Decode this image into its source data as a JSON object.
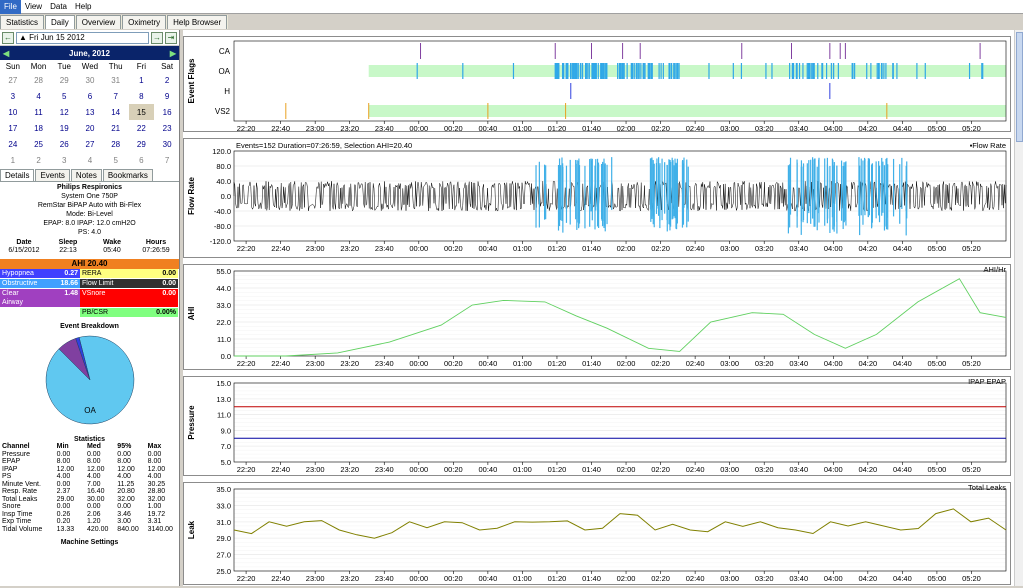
{
  "menu": [
    "File",
    "View",
    "Data",
    "Help"
  ],
  "tabs": [
    "Statistics",
    "Daily",
    "Overview",
    "Oximetry",
    "Help Browser"
  ],
  "date_box": "Fri Jun 15 2012",
  "cal_title": "June,  2012",
  "weekdays": [
    "Sun",
    "Mon",
    "Tue",
    "Wed",
    "Thu",
    "Fri",
    "Sat"
  ],
  "cal_rows": [
    [
      "27",
      "28",
      "29",
      "30",
      "31",
      "1",
      "2"
    ],
    [
      "3",
      "4",
      "5",
      "6",
      "7",
      "8",
      "9"
    ],
    [
      "10",
      "11",
      "12",
      "13",
      "14",
      "15",
      "16"
    ],
    [
      "17",
      "18",
      "19",
      "20",
      "21",
      "22",
      "23"
    ],
    [
      "24",
      "25",
      "26",
      "27",
      "28",
      "29",
      "30"
    ],
    [
      "1",
      "2",
      "3",
      "4",
      "5",
      "6",
      "7"
    ]
  ],
  "subtabs": [
    "Details",
    "Events",
    "Notes",
    "Bookmarks"
  ],
  "machine": {
    "brand": "Philips Respironics",
    "model": "System One 750P",
    "name": "RemStar BiPAP Auto with Bi-Flex",
    "mode": "Mode: Bi-Level",
    "pressure": "EPAP: 8.0 IPAP: 12.0 cmH2O",
    "ps": "PS: 4.0"
  },
  "dsw": {
    "h": [
      "Date",
      "Sleep",
      "Wake",
      "Hours"
    ],
    "v": [
      "6/15/2012",
      "22:13",
      "05:40",
      "07:26:59"
    ]
  },
  "ahi": "AHI 20.40",
  "idx": [
    {
      "l": "Hypopnea",
      "v": "0.27",
      "lc": "#4040ff",
      "vc": "#4040ff",
      "fg": "#fff"
    },
    {
      "l": "RERA",
      "v": "0.00",
      "lc": "#ffff80",
      "vc": "#ffff80",
      "fg": "#000"
    },
    {
      "l": "Obstructive",
      "v": "18.66",
      "lc": "#40a0ff",
      "vc": "#40a0ff",
      "fg": "#fff"
    },
    {
      "l": "Flow Limit",
      "v": "0.00",
      "lc": "#303030",
      "vc": "#303030",
      "fg": "#fff"
    },
    {
      "l": "Clear Airway",
      "v": "1.48",
      "lc": "#a040c0",
      "vc": "#a040c0",
      "fg": "#fff"
    },
    {
      "l": "VSnore",
      "v": "0.00",
      "lc": "#ff0000",
      "vc": "#ff0000",
      "fg": "#fff"
    },
    {
      "l": "",
      "v": "",
      "lc": "#fff",
      "vc": "#fff",
      "fg": "#000"
    },
    {
      "l": "PB/CSR",
      "v": "0.00%",
      "lc": "#80ff80",
      "vc": "#80ff80",
      "fg": "#000"
    }
  ],
  "event_breakdown": "Event Breakdown",
  "pie": {
    "label": "OA",
    "slices": [
      {
        "name": "OA",
        "value": 91.5,
        "color": "#60c8f0"
      },
      {
        "name": "CA",
        "value": 7.2,
        "color": "#8040a0"
      },
      {
        "name": "H",
        "value": 1.3,
        "color": "#3040e0"
      }
    ]
  },
  "statistics_title": "Statistics",
  "stat_header": [
    "Channel",
    "Min",
    "Med",
    "95%",
    "Max"
  ],
  "stats": [
    [
      "Pressure",
      "0.00",
      "0.00",
      "0.00",
      "0.00"
    ],
    [
      "EPAP",
      "8.00",
      "8.00",
      "8.00",
      "8.00"
    ],
    [
      "IPAP",
      "12.00",
      "12.00",
      "12.00",
      "12.00"
    ],
    [
      "PS",
      "4.00",
      "4.00",
      "4.00",
      "4.00"
    ],
    [
      "Minute Vent.",
      "0.00",
      "7.00",
      "11.25",
      "30.25"
    ],
    [
      "Resp. Rate",
      "2.37",
      "16.40",
      "20.80",
      "28.80"
    ],
    [
      "Total Leaks",
      "29.00",
      "30.00",
      "32.00",
      "32.00"
    ],
    [
      "Snore",
      "0.00",
      "0.00",
      "0.00",
      "1.00"
    ],
    [
      "Insp Time",
      "0.26",
      "2.06",
      "3.46",
      "19.72"
    ],
    [
      "Exp Time",
      "0.20",
      "1.20",
      "3.00",
      "3.31"
    ],
    [
      "Tidal Volume",
      "13.33",
      "420.00",
      "840.00",
      "3140.00"
    ]
  ],
  "machine_settings": "Machine Settings",
  "x_ticks": [
    "22:20",
    "22:40",
    "23:00",
    "23:20",
    "23:40",
    "00:00",
    "00:20",
    "00:40",
    "01:00",
    "01:20",
    "01:40",
    "02:00",
    "02:20",
    "02:40",
    "03:00",
    "03:20",
    "03:40",
    "04:00",
    "04:20",
    "04:40",
    "05:00",
    "05:20"
  ],
  "flags": {
    "ylabel": "Event Flags",
    "rows": [
      "CA",
      "OA",
      "H",
      "VS2"
    ]
  },
  "flow": {
    "ylabel": "Flow Rate",
    "info": "Events=152 Duration=07:26:59, Selection AHI=20.40",
    "legend": "Flow Rate",
    "ticks": [
      "120.0",
      "80.0",
      "40.0",
      "0.0",
      "-40.0",
      "-80.0",
      "-120.0"
    ]
  },
  "ahi_chart": {
    "ylabel": "AHI",
    "legend": "AHI/Hr",
    "ticks": [
      "55.0",
      "44.0",
      "33.0",
      "22.0",
      "11.0",
      "0.0"
    ]
  },
  "press": {
    "ylabel": "Pressure",
    "legend": "IPAP  EPAP",
    "ticks": [
      "15.0",
      "13.0",
      "11.0",
      "9.0",
      "7.0",
      "5.0"
    ]
  },
  "leak": {
    "ylabel": "Leak",
    "legend": "Total Leaks",
    "ticks": [
      "35.0",
      "33.0",
      "31.0",
      "29.0",
      "27.0",
      "25.0"
    ]
  },
  "chart_data": [
    {
      "type": "line",
      "title": "",
      "xlabel": "",
      "ylabel": "AHI",
      "ylim": [
        0,
        55
      ],
      "series": [
        {
          "name": "AHI/Hr",
          "x_hours": [
            0,
            0.5,
            1,
            1.5,
            2,
            2.3,
            2.6,
            3,
            3.3,
            3.6,
            4,
            4.3,
            4.6,
            5,
            5.3,
            5.6,
            5.9,
            6.2,
            6.6,
            7,
            7.2,
            7.45
          ],
          "values": [
            0,
            0,
            2,
            9,
            20,
            33,
            36,
            35,
            26,
            18,
            5,
            3,
            22,
            28,
            27,
            14,
            5,
            14,
            35,
            50,
            28,
            25
          ]
        }
      ]
    },
    {
      "type": "line",
      "ylabel": "Pressure",
      "ylim": [
        5,
        15
      ],
      "series": [
        {
          "name": "IPAP",
          "values": [
            12,
            12
          ]
        },
        {
          "name": "EPAP",
          "values": [
            8,
            8
          ]
        }
      ]
    },
    {
      "type": "line",
      "ylabel": "Leak",
      "ylim": [
        25,
        35
      ],
      "series": [
        {
          "name": "Total Leaks",
          "values": [
            30,
            31,
            31,
            30,
            29,
            31,
            31,
            30,
            31,
            31,
            30,
            32,
            30,
            30,
            31,
            31,
            30,
            31,
            31,
            30,
            32,
            31,
            30
          ]
        }
      ]
    }
  ]
}
